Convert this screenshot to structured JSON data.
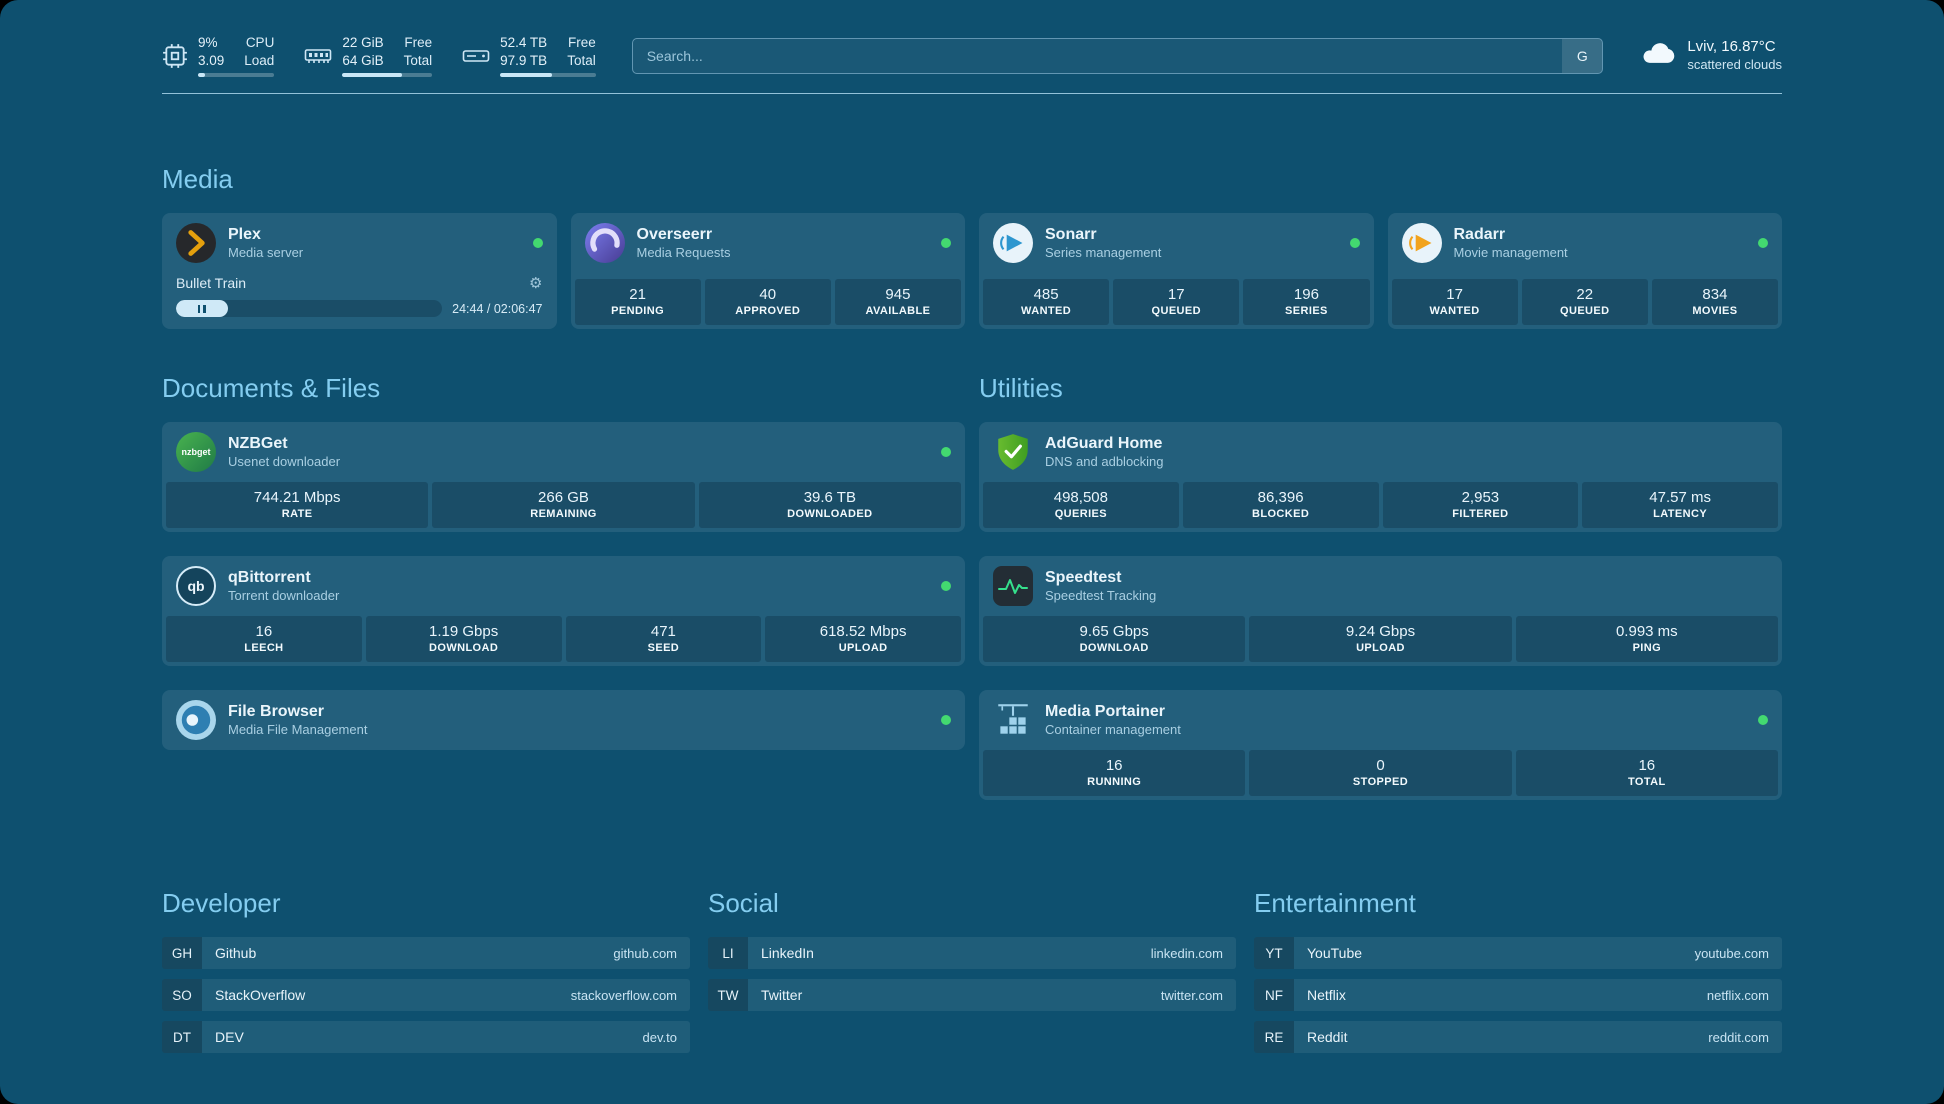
{
  "topbar": {
    "cpu": {
      "top_value": "9%",
      "bottom_value": "3.09",
      "top_label": "CPU",
      "bottom_label": "Load",
      "percent": 9
    },
    "memory": {
      "top_value": "22 GiB",
      "bottom_value": "64 GiB",
      "top_label": "Free",
      "bottom_label": "Total",
      "percent": 66
    },
    "disk": {
      "top_value": "52.4 TB",
      "bottom_value": "97.9 TB",
      "top_label": "Free",
      "bottom_label": "Total",
      "percent": 54
    },
    "search": {
      "placeholder": "Search...",
      "provider_label": "G"
    },
    "weather": {
      "location": "Lviv, 16.87°C",
      "condition": "scattered clouds"
    }
  },
  "sections": {
    "media": "Media",
    "documents": "Documents & Files",
    "utilities": "Utilities"
  },
  "services": {
    "plex": {
      "name": "Plex",
      "subtitle": "Media server",
      "now_playing": "Bullet Train",
      "time": "24:44 / 02:06:47",
      "progress_percent": 19.5
    },
    "overseerr": {
      "name": "Overseerr",
      "subtitle": "Media Requests",
      "stats": [
        {
          "value": "21",
          "label": "PENDING"
        },
        {
          "value": "40",
          "label": "APPROVED"
        },
        {
          "value": "945",
          "label": "AVAILABLE"
        }
      ]
    },
    "sonarr": {
      "name": "Sonarr",
      "subtitle": "Series management",
      "stats": [
        {
          "value": "485",
          "label": "WANTED"
        },
        {
          "value": "17",
          "label": "QUEUED"
        },
        {
          "value": "196",
          "label": "SERIES"
        }
      ]
    },
    "radarr": {
      "name": "Radarr",
      "subtitle": "Movie management",
      "stats": [
        {
          "value": "17",
          "label": "WANTED"
        },
        {
          "value": "22",
          "label": "QUEUED"
        },
        {
          "value": "834",
          "label": "MOVIES"
        }
      ]
    },
    "nzbget": {
      "name": "NZBGet",
      "subtitle": "Usenet downloader",
      "icon_text": "nzbget",
      "stats": [
        {
          "value": "744.21 Mbps",
          "label": "RATE"
        },
        {
          "value": "266 GB",
          "label": "REMAINING"
        },
        {
          "value": "39.6 TB",
          "label": "DOWNLOADED"
        }
      ]
    },
    "qbittorrent": {
      "name": "qBittorrent",
      "subtitle": "Torrent downloader",
      "icon_text": "qb",
      "stats": [
        {
          "value": "16",
          "label": "LEECH"
        },
        {
          "value": "1.19 Gbps",
          "label": "DOWNLOAD"
        },
        {
          "value": "471",
          "label": "SEED"
        },
        {
          "value": "618.52 Mbps",
          "label": "UPLOAD"
        }
      ]
    },
    "filebrowser": {
      "name": "File Browser",
      "subtitle": "Media File Management"
    },
    "adguard": {
      "name": "AdGuard Home",
      "subtitle": "DNS and adblocking",
      "stats": [
        {
          "value": "498,508",
          "label": "QUERIES"
        },
        {
          "value": "86,396",
          "label": "BLOCKED"
        },
        {
          "value": "2,953",
          "label": "FILTERED"
        },
        {
          "value": "47.57 ms",
          "label": "LATENCY"
        }
      ]
    },
    "speedtest": {
      "name": "Speedtest",
      "subtitle": "Speedtest Tracking",
      "stats": [
        {
          "value": "9.65 Gbps",
          "label": "DOWNLOAD"
        },
        {
          "value": "9.24 Gbps",
          "label": "UPLOAD"
        },
        {
          "value": "0.993 ms",
          "label": "PING"
        }
      ]
    },
    "portainer": {
      "name": "Media Portainer",
      "subtitle": "Container management",
      "stats": [
        {
          "value": "16",
          "label": "RUNNING"
        },
        {
          "value": "0",
          "label": "STOPPED"
        },
        {
          "value": "16",
          "label": "TOTAL"
        }
      ]
    }
  },
  "bookmarks": {
    "developer": {
      "title": "Developer",
      "items": [
        {
          "abbr": "GH",
          "name": "Github",
          "url": "github.com"
        },
        {
          "abbr": "SO",
          "name": "StackOverflow",
          "url": "stackoverflow.com"
        },
        {
          "abbr": "DT",
          "name": "DEV",
          "url": "dev.to"
        }
      ]
    },
    "social": {
      "title": "Social",
      "items": [
        {
          "abbr": "LI",
          "name": "LinkedIn",
          "url": "linkedin.com"
        },
        {
          "abbr": "TW",
          "name": "Twitter",
          "url": "twitter.com"
        }
      ]
    },
    "entertainment": {
      "title": "Entertainment",
      "items": [
        {
          "abbr": "YT",
          "name": "YouTube",
          "url": "youtube.com"
        },
        {
          "abbr": "NF",
          "name": "Netflix",
          "url": "netflix.com"
        },
        {
          "abbr": "RE",
          "name": "Reddit",
          "url": "reddit.com"
        }
      ]
    }
  },
  "colors": {
    "status_online": "#43d970",
    "heading": "#84cdf0",
    "background": "#0e506f",
    "plex_accent": "#e5a00d"
  }
}
